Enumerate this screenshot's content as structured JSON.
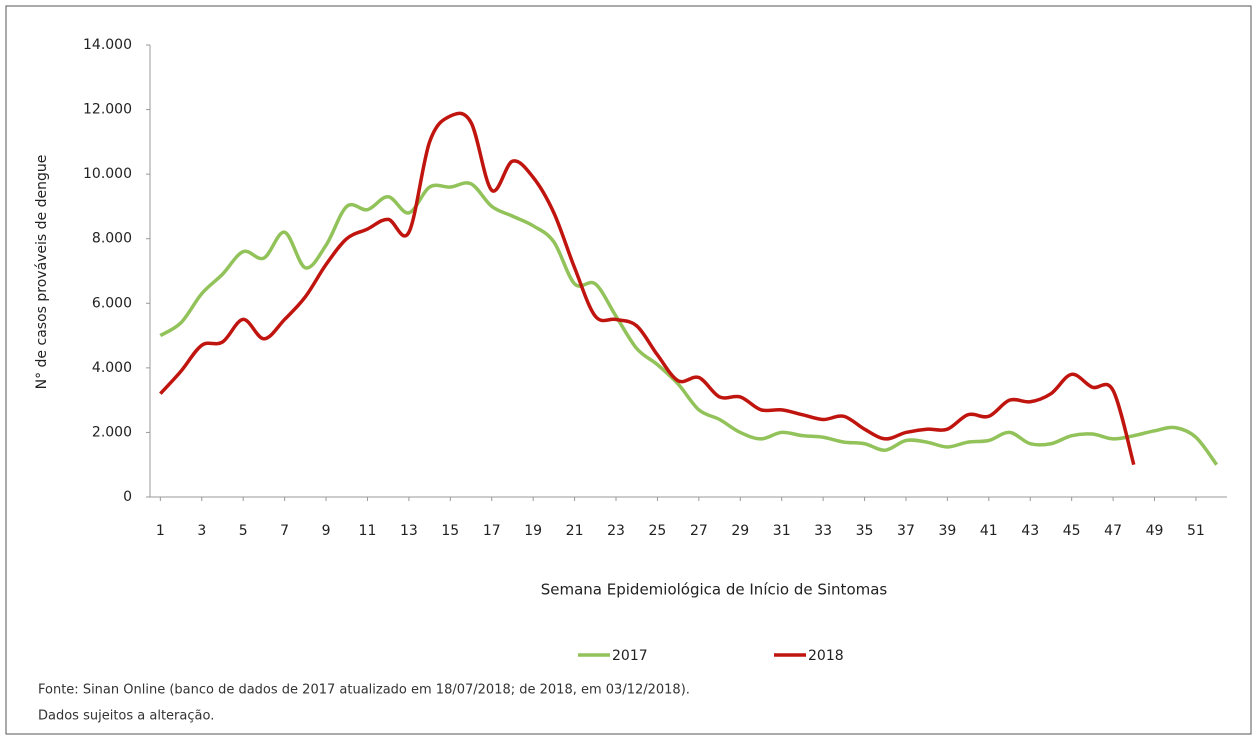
{
  "chart_data": {
    "type": "line",
    "y_label": "N° de casos prováveis de dengue",
    "x_label": "Semana Epidemiológica de Início de Sintomas",
    "x": [
      1,
      2,
      3,
      4,
      5,
      6,
      7,
      8,
      9,
      10,
      11,
      12,
      13,
      14,
      15,
      16,
      17,
      18,
      19,
      20,
      21,
      22,
      23,
      24,
      25,
      26,
      27,
      28,
      29,
      30,
      31,
      32,
      33,
      34,
      35,
      36,
      37,
      38,
      39,
      40,
      41,
      42,
      43,
      44,
      45,
      46,
      47,
      48,
      49,
      50,
      51,
      52
    ],
    "xlim": [
      0.5,
      52.5
    ],
    "xticks": [
      1,
      3,
      5,
      7,
      9,
      11,
      13,
      15,
      17,
      19,
      21,
      23,
      25,
      27,
      29,
      31,
      33,
      35,
      37,
      39,
      41,
      43,
      45,
      47,
      49,
      51
    ],
    "ylim": [
      0,
      14000
    ],
    "yticks": [
      0,
      {
        "value": 2000,
        "label": "2.000"
      },
      {
        "value": 4000,
        "label": "4.000"
      },
      {
        "value": 6000,
        "label": "6.000"
      },
      {
        "value": 8000,
        "label": "8.000"
      },
      {
        "value": 10000,
        "label": "10.000"
      },
      {
        "value": 12000,
        "label": "12.000"
      },
      {
        "value": 14000,
        "label": "14.000"
      }
    ],
    "series": [
      {
        "name": "2017",
        "color": "#92c25a",
        "values": [
          5000,
          5400,
          6300,
          6900,
          7600,
          7400,
          8200,
          7100,
          7800,
          9000,
          8900,
          9300,
          8800,
          9600,
          9600,
          9700,
          9000,
          8700,
          8400,
          7900,
          6600,
          6600,
          5600,
          4600,
          4100,
          3500,
          2700,
          2400,
          2000,
          1800,
          2000,
          1900,
          1850,
          1700,
          1650,
          1450,
          1750,
          1700,
          1550,
          1700,
          1750,
          2000,
          1650,
          1650,
          1900,
          1950,
          1800,
          1900,
          2050,
          2150,
          1850,
          1000
        ]
      },
      {
        "name": "2018",
        "color": "#c0150f",
        "values": [
          3200,
          3900,
          4700,
          4800,
          5500,
          4900,
          5500,
          6200,
          7200,
          8000,
          8300,
          8600,
          8200,
          11000,
          11800,
          11600,
          9500,
          10400,
          9900,
          8800,
          7100,
          5600,
          5500,
          5300,
          4400,
          3600,
          3700,
          3100,
          3100,
          2700,
          2700,
          2550,
          2400,
          2500,
          2100,
          1800,
          2000,
          2100,
          2100,
          2550,
          2500,
          3000,
          2950,
          3200,
          3800,
          3400,
          3300,
          1000,
          null,
          null,
          null,
          null
        ]
      }
    ],
    "notes": [
      "Fonte: Sinan Online (banco de dados de 2017 atualizado em 18/07/2018; de 2018, em 03/12/2018).",
      "Dados sujeitos a alteração."
    ]
  }
}
